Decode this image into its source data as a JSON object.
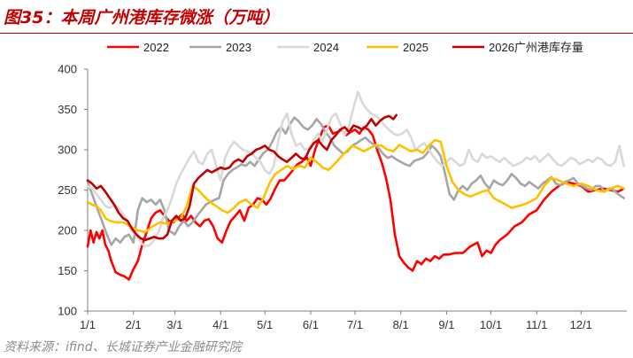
{
  "page": {
    "title": "图35：本周广州港库存微涨（万吨）",
    "source": "资料来源：ifind、长城证券产业金融研究院"
  },
  "chart_data": {
    "type": "line",
    "title": "本周广州港库存微涨（万吨）",
    "xlabel": "",
    "ylabel": "",
    "ylim": [
      100,
      400
    ],
    "yticks": [
      100,
      150,
      200,
      250,
      300,
      350,
      400
    ],
    "xlim": [
      1,
      366
    ],
    "xticks": [
      {
        "label": "1/1",
        "day": 1
      },
      {
        "label": "2/1",
        "day": 32
      },
      {
        "label": "3/1",
        "day": 60
      },
      {
        "label": "4/1",
        "day": 91
      },
      {
        "label": "5/1",
        "day": 121
      },
      {
        "label": "6/1",
        "day": 152
      },
      {
        "label": "7/1",
        "day": 182
      },
      {
        "label": "8/1",
        "day": 213
      },
      {
        "label": "9/1",
        "day": 244
      },
      {
        "label": "10/1",
        "day": 274
      },
      {
        "label": "11/1",
        "day": 305
      },
      {
        "label": "12/1",
        "day": 335
      }
    ],
    "grid": false,
    "legend_position": "top",
    "x_unit": "day of year",
    "series": [
      {
        "name": "2022",
        "color": "#ff0000",
        "x": [
          1,
          3,
          5,
          7,
          9,
          11,
          13,
          15,
          17,
          20,
          23,
          26,
          29,
          32,
          35,
          38,
          41,
          44,
          47,
          50,
          53,
          56,
          59,
          62,
          65,
          68,
          71,
          74,
          77,
          80,
          83,
          86,
          89,
          92,
          95,
          98,
          101,
          104,
          107,
          110,
          113,
          116,
          119,
          122,
          125,
          128,
          131,
          134,
          137,
          140,
          143,
          146,
          149,
          152,
          155,
          158,
          161,
          164,
          167,
          170,
          173,
          176,
          179,
          182,
          185,
          188,
          191,
          194,
          197,
          200,
          203,
          206,
          209,
          212,
          215,
          218,
          221,
          224,
          227,
          230,
          233,
          236,
          239,
          242,
          245,
          250,
          255,
          260,
          265,
          268,
          271,
          274,
          277,
          280,
          285,
          290,
          295,
          300,
          305,
          310,
          315,
          320,
          325,
          330,
          335,
          340,
          345,
          350,
          355,
          360,
          364
        ],
        "y": [
          180,
          200,
          185,
          198,
          190,
          200,
          182,
          175,
          162,
          148,
          145,
          143,
          139,
          152,
          162,
          182,
          198,
          215,
          222,
          225,
          218,
          212,
          210,
          215,
          220,
          212,
          218,
          210,
          205,
          212,
          214,
          205,
          190,
          185,
          200,
          212,
          218,
          225,
          212,
          228,
          232,
          240,
          238,
          232,
          240,
          252,
          262,
          262,
          268,
          275,
          282,
          285,
          292,
          280,
          300,
          315,
          328,
          330,
          320,
          322,
          325,
          318,
          322,
          325,
          320,
          328,
          325,
          318,
          300,
          285,
          265,
          238,
          195,
          168,
          160,
          154,
          150,
          162,
          158,
          165,
          162,
          168,
          165,
          170,
          170,
          172,
          172,
          180,
          185,
          168,
          175,
          172,
          182,
          188,
          195,
          205,
          210,
          220,
          225,
          238,
          248,
          255,
          260,
          258,
          255,
          248,
          250,
          252,
          250,
          248,
          252
        ]
      },
      {
        "name": "2023",
        "color": "#a6a6a6",
        "x": [
          1,
          3,
          5,
          8,
          11,
          14,
          17,
          20,
          23,
          26,
          29,
          32,
          35,
          38,
          41,
          44,
          47,
          50,
          53,
          56,
          60,
          63,
          66,
          69,
          72,
          75,
          78,
          81,
          84,
          87,
          90,
          93,
          96,
          99,
          102,
          105,
          108,
          111,
          114,
          117,
          120,
          123,
          126,
          129,
          132,
          135,
          138,
          141,
          144,
          147,
          150,
          153,
          156,
          159,
          162,
          165,
          168,
          171,
          174,
          177,
          180,
          183,
          186,
          189,
          192,
          195,
          198,
          201,
          204,
          207,
          210,
          213,
          216,
          219,
          222,
          225,
          228,
          231,
          234,
          237,
          240,
          243,
          246,
          249,
          252,
          255,
          258,
          261,
          264,
          267,
          270,
          273,
          276,
          279,
          282,
          285,
          288,
          291,
          294,
          297,
          300,
          303,
          306,
          309,
          312,
          315,
          318,
          321,
          324,
          327,
          330,
          333,
          336,
          339,
          342,
          345,
          348,
          351,
          354,
          357,
          360,
          364
        ],
        "y": [
          260,
          250,
          240,
          225,
          210,
          195,
          182,
          190,
          185,
          192,
          195,
          185,
          225,
          240,
          235,
          238,
          232,
          238,
          225,
          200,
          195,
          205,
          212,
          205,
          210,
          218,
          225,
          232,
          235,
          238,
          240,
          262,
          270,
          275,
          278,
          282,
          280,
          285,
          280,
          288,
          296,
          300,
          310,
          322,
          328,
          320,
          332,
          340,
          335,
          328,
          325,
          330,
          338,
          332,
          322,
          315,
          305,
          300,
          295,
          298,
          305,
          308,
          312,
          315,
          310,
          306,
          302,
          295,
          290,
          292,
          288,
          285,
          282,
          280,
          286,
          288,
          290,
          296,
          305,
          300,
          292,
          270,
          245,
          238,
          250,
          255,
          250,
          258,
          262,
          268,
          258,
          252,
          262,
          258,
          256,
          262,
          270,
          265,
          258,
          255,
          260,
          256,
          252,
          258,
          262,
          266,
          258,
          256,
          260,
          262,
          265,
          258,
          255,
          252,
          250,
          255,
          255,
          248,
          252,
          250,
          245,
          240
        ]
      },
      {
        "name": "2024",
        "color": "#d9d9d9",
        "x": [
          1,
          4,
          7,
          10,
          13,
          16,
          19,
          22,
          25,
          28,
          31,
          34,
          37,
          40,
          43,
          46,
          49,
          52,
          55,
          58,
          61,
          64,
          67,
          70,
          73,
          76,
          79,
          82,
          85,
          88,
          91,
          94,
          97,
          100,
          103,
          106,
          109,
          112,
          115,
          118,
          121,
          124,
          127,
          130,
          133,
          136,
          139,
          142,
          145,
          148,
          151,
          154,
          157,
          160,
          163,
          166,
          169,
          172,
          175,
          178,
          181,
          184,
          187,
          190,
          193,
          196,
          199,
          202,
          205,
          208,
          211,
          214,
          217,
          220,
          223,
          226,
          229,
          232,
          235,
          238,
          241,
          244,
          247,
          250,
          253,
          256,
          259,
          262,
          265,
          268,
          271,
          274,
          277,
          280,
          283,
          286,
          289,
          292,
          295,
          298,
          301,
          304,
          307,
          310,
          313,
          316,
          319,
          322,
          325,
          328,
          331,
          334,
          337,
          340,
          343,
          346,
          349,
          352,
          355,
          358,
          361,
          364
        ],
        "y": [
          255,
          252,
          245,
          238,
          230,
          228,
          232,
          228,
          220,
          210,
          198,
          195,
          185,
          180,
          182,
          188,
          198,
          215,
          225,
          240,
          258,
          270,
          280,
          290,
          298,
          285,
          282,
          295,
          300,
          280,
          262,
          290,
          302,
          310,
          305,
          300,
          298,
          295,
          290,
          285,
          275,
          270,
          280,
          310,
          335,
          345,
          320,
          305,
          308,
          300,
          302,
          312,
          320,
          310,
          325,
          340,
          345,
          332,
          318,
          330,
          352,
          372,
          358,
          350,
          345,
          342,
          338,
          330,
          325,
          320,
          318,
          320,
          325,
          315,
          300,
          305,
          308,
          300,
          292,
          285,
          280,
          285,
          290,
          285,
          280,
          283,
          300,
          288,
          285,
          295,
          290,
          292,
          288,
          285,
          290,
          285,
          280,
          282,
          285,
          290,
          288,
          292,
          285,
          290,
          295,
          288,
          282,
          280,
          285,
          290,
          288,
          282,
          285,
          288,
          285,
          290,
          288,
          282,
          280,
          285,
          305,
          280
        ]
      },
      {
        "name": "2025",
        "color": "#ffc000",
        "x": [
          1,
          4,
          7,
          10,
          13,
          16,
          20,
          25,
          30,
          35,
          40,
          45,
          50,
          55,
          60,
          64,
          68,
          72,
          76,
          80,
          84,
          88,
          92,
          96,
          100,
          104,
          108,
          112,
          116,
          120,
          124,
          128,
          132,
          136,
          140,
          144,
          148,
          152,
          156,
          160,
          164,
          168,
          172,
          176,
          180,
          184,
          188,
          192,
          196,
          200,
          204,
          208,
          212,
          216,
          220,
          224,
          228,
          232,
          236,
          240,
          244,
          248,
          252,
          256,
          260,
          264,
          268,
          272,
          276,
          280,
          284,
          288,
          292,
          296,
          300,
          305,
          310,
          315,
          320,
          325,
          330,
          335,
          340,
          345,
          350,
          355,
          360,
          364
        ],
        "y": [
          235,
          232,
          230,
          225,
          215,
          212,
          210,
          210,
          205,
          200,
          198,
          205,
          210,
          208,
          212,
          215,
          230,
          255,
          250,
          242,
          235,
          230,
          225,
          222,
          228,
          235,
          238,
          232,
          228,
          240,
          258,
          270,
          275,
          280,
          276,
          280,
          278,
          290,
          285,
          278,
          275,
          282,
          290,
          298,
          305,
          302,
          298,
          302,
          306,
          305,
          300,
          298,
          306,
          302,
          298,
          300,
          296,
          305,
          312,
          310,
          280,
          260,
          250,
          245,
          242,
          245,
          248,
          250,
          240,
          236,
          232,
          228,
          230,
          232,
          235,
          240,
          255,
          265,
          262,
          258,
          255,
          258,
          255,
          250,
          248,
          252,
          255,
          252
        ]
      },
      {
        "name": "2026广州港库存量",
        "color": "#c00000",
        "x": [
          1,
          4,
          7,
          10,
          13,
          16,
          19,
          22,
          25,
          28,
          31,
          34,
          37,
          40,
          43,
          46,
          49,
          52,
          55,
          58,
          61,
          64,
          67,
          70,
          73,
          76,
          79,
          82,
          85,
          88,
          91,
          94,
          97,
          100,
          103,
          106,
          109,
          112,
          115,
          118,
          121,
          124,
          127,
          130,
          133,
          136,
          139,
          142,
          145,
          148,
          151,
          154,
          157,
          160,
          163,
          166,
          169,
          172,
          175,
          178,
          181,
          184,
          187,
          190,
          193,
          196,
          199,
          202,
          205,
          208,
          210
        ],
        "y": [
          262,
          258,
          252,
          255,
          248,
          240,
          232,
          222,
          215,
          212,
          202,
          195,
          190,
          188,
          190,
          192,
          190,
          190,
          195,
          212,
          218,
          212,
          215,
          230,
          258,
          265,
          270,
          275,
          272,
          275,
          278,
          276,
          278,
          285,
          288,
          285,
          292,
          295,
          300,
          302,
          305,
          300,
          298,
          292,
          288,
          285,
          290,
          295,
          290,
          288,
          300,
          308,
          312,
          305,
          300,
          312,
          318,
          325,
          328,
          322,
          330,
          328,
          325,
          330,
          338,
          330,
          336,
          340,
          342,
          338,
          343
        ]
      }
    ]
  }
}
